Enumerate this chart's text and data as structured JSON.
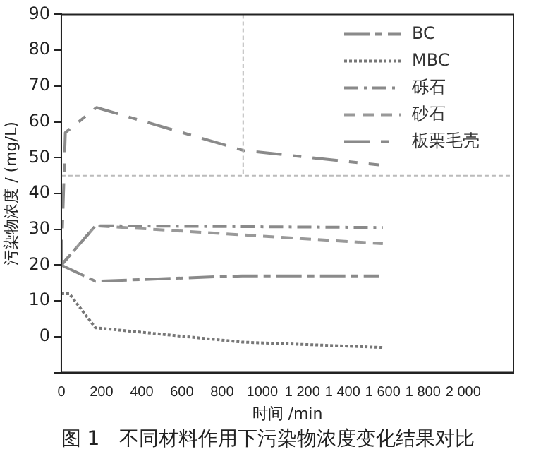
{
  "chart_data": {
    "type": "line",
    "title": "图 1　不同材料作用下污染物浓度变化结果对比",
    "xlabel": "时间 /min",
    "ylabel": "污染物浓度 / (mg/L)",
    "xlim": [
      0,
      2250
    ],
    "xticks": [
      0,
      200,
      400,
      600,
      800,
      1000,
      {
        "value": 1200,
        "label": "1 200"
      },
      {
        "value": 1400,
        "label": "1 400"
      },
      {
        "value": 1600,
        "label": "1 600"
      },
      {
        "value": 1800,
        "label": "1 800"
      },
      {
        "value": 2000,
        "label": "2 000"
      }
    ],
    "ylim": [
      -10,
      90
    ],
    "yticks": [
      {
        "value": -10,
        "label": null
      },
      0,
      10,
      20,
      30,
      40,
      50,
      60,
      70,
      80,
      90
    ],
    "grid": false,
    "legend": "top right",
    "marker": "none",
    "ref_lines": [
      {
        "axis": "y",
        "value": 45,
        "color": "#bbbbbb",
        "line_style": "dashed"
      },
      {
        "axis": "x",
        "value": 905,
        "color": "#bbbbbb",
        "line_style": "dashed"
      }
    ],
    "series": [
      {
        "name": "BC",
        "color": "#8a8a8a",
        "line_style": "dashed",
        "x": [
          0,
          170,
          900,
          1580
        ],
        "values": [
          20,
          15.5,
          17,
          17
        ]
      },
      {
        "name": "MBC",
        "color": "#777777",
        "line_style": "dotted",
        "x": [
          0,
          40,
          170,
          900,
          1600
        ],
        "values": [
          12,
          12,
          2.5,
          -1.5,
          -3
        ]
      },
      {
        "name": "砾石",
        "color": "#8a8a8a",
        "line_style": "dashed",
        "x": [
          0,
          170,
          1600
        ],
        "values": [
          20,
          31,
          30.5
        ]
      },
      {
        "name": "砂石",
        "color": "#999999",
        "line_style": "dashed",
        "x": [
          0,
          170,
          1600
        ],
        "values": [
          20,
          31,
          26
        ]
      },
      {
        "name": "板栗毛壳",
        "color": "#8a8a8a",
        "line_style": "dashed",
        "x": [
          0,
          20,
          175,
          907,
          1580
        ],
        "values": [
          20,
          57,
          64,
          52,
          48
        ]
      }
    ]
  }
}
